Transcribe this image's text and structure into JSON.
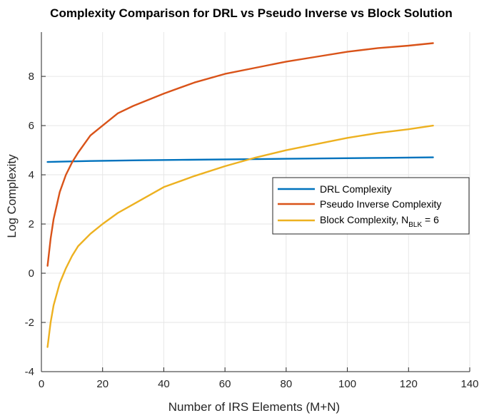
{
  "chart_data": {
    "type": "line",
    "title": "Complexity Comparison for DRL vs Pseudo Inverse vs Block Solution",
    "xlabel": "Number of IRS Elements (M+N)",
    "ylabel": "Log Complexity",
    "xlim": [
      0,
      140
    ],
    "ylim": [
      -4,
      9.8
    ],
    "xticks": [
      "0",
      "20",
      "40",
      "60",
      "80",
      "100",
      "120",
      "140"
    ],
    "yticks": [
      "-4",
      "-2",
      "0",
      "2",
      "4",
      "6",
      "8"
    ],
    "grid": true,
    "legend_position": "center-right",
    "legend": {
      "entries": [
        {
          "text": "DRL Complexity"
        },
        {
          "text": "Pseudo Inverse Complexity"
        },
        {
          "text": "Block Complexity, N",
          "sub": "BLK",
          "suffix": " = 6"
        }
      ]
    },
    "series": [
      {
        "name": "DRL Complexity",
        "color": "#0072BD",
        "x": [
          2,
          8,
          16,
          32,
          48,
          64,
          80,
          96,
          112,
          128
        ],
        "y": [
          4.52,
          4.54,
          4.56,
          4.59,
          4.61,
          4.63,
          4.65,
          4.67,
          4.69,
          4.71
        ]
      },
      {
        "name": "Pseudo Inverse Complexity",
        "color": "#D95319",
        "x": [
          2,
          3,
          4,
          6,
          8,
          10,
          12,
          16,
          20,
          25,
          30,
          40,
          50,
          60,
          70,
          80,
          90,
          100,
          110,
          120,
          128
        ],
        "y": [
          0.3,
          1.4,
          2.2,
          3.3,
          4.0,
          4.5,
          4.9,
          5.6,
          6.0,
          6.5,
          6.8,
          7.3,
          7.75,
          8.1,
          8.35,
          8.6,
          8.8,
          9.0,
          9.15,
          9.25,
          9.35
        ]
      },
      {
        "name": "Block Complexity, N_BLK = 6",
        "color": "#EDB120",
        "x": [
          2,
          3,
          4,
          6,
          8,
          10,
          12,
          16,
          20,
          25,
          30,
          40,
          50,
          60,
          70,
          80,
          90,
          100,
          110,
          120,
          128
        ],
        "y": [
          -3.0,
          -2.0,
          -1.3,
          -0.4,
          0.2,
          0.7,
          1.1,
          1.6,
          2.0,
          2.45,
          2.8,
          3.5,
          3.95,
          4.35,
          4.7,
          5.0,
          5.25,
          5.5,
          5.7,
          5.85,
          6.0
        ]
      }
    ]
  }
}
